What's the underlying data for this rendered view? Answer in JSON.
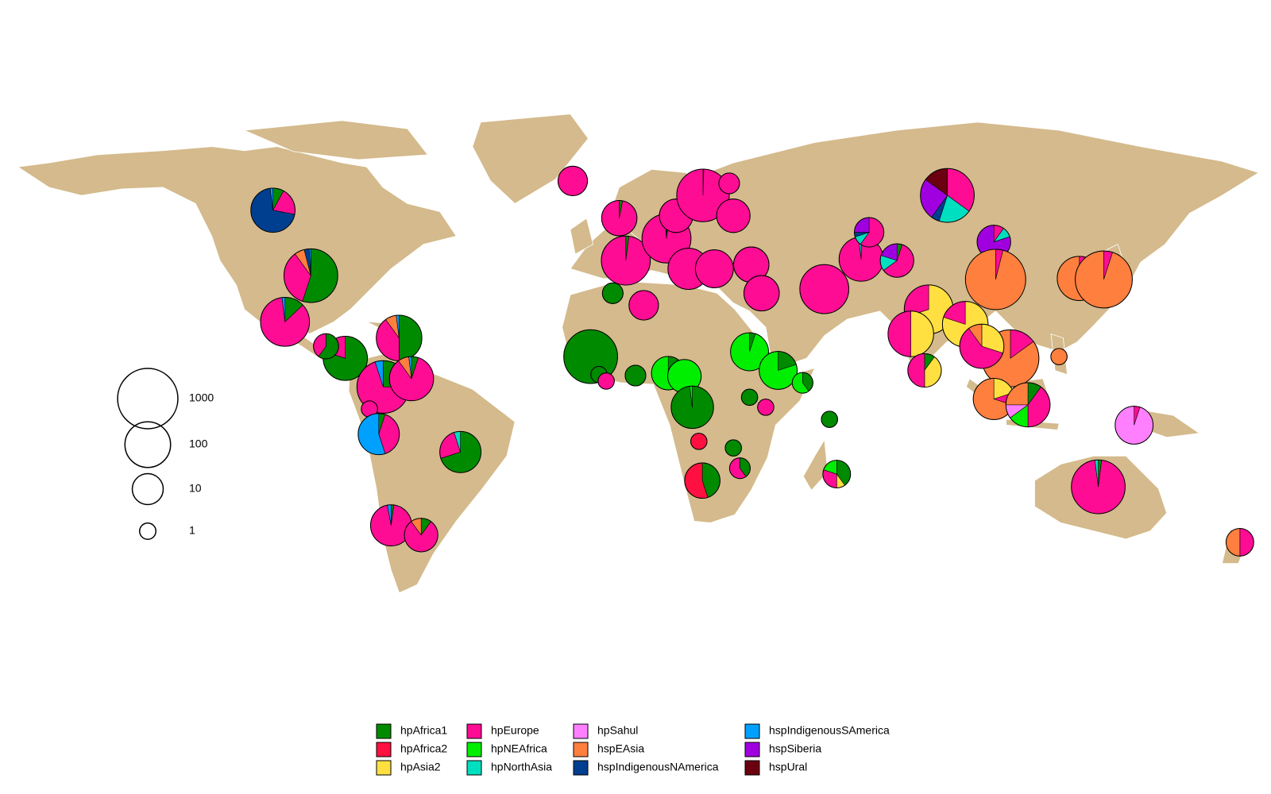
{
  "chart_data": {
    "type": "pie-map",
    "populations": [
      {
        "name": "hpAfrica1",
        "color": "#008a00"
      },
      {
        "name": "hpAfrica2",
        "color": "#ff1040"
      },
      {
        "name": "hpAsia2",
        "color": "#ffe040"
      },
      {
        "name": "hpEurope",
        "color": "#ff0c94"
      },
      {
        "name": "hpNEAfrica",
        "color": "#00ee00"
      },
      {
        "name": "hpNorthAsia",
        "color": "#00dfc0"
      },
      {
        "name": "hpSahul",
        "color": "#ff80ff"
      },
      {
        "name": "hspEAsia",
        "color": "#ff7f3f"
      },
      {
        "name": "hspIndigenousNAmerica",
        "color": "#003f8f"
      },
      {
        "name": "hspIndigenousSAmerica",
        "color": "#00a0ff"
      },
      {
        "name": "hspSiberia",
        "color": "#a000e0"
      },
      {
        "name": "hspUral",
        "color": "#6b0010"
      }
    ],
    "size_legend": [
      1000,
      100,
      10,
      1
    ],
    "pies": [
      {
        "lon": -106,
        "lat": 56,
        "n": 80,
        "values": [
          8,
          0,
          0,
          20,
          0,
          0,
          0,
          0,
          70,
          2,
          0,
          0
        ]
      },
      {
        "lon": -95,
        "lat": 37,
        "n": 360,
        "values": [
          55,
          0,
          0,
          35,
          0,
          0,
          0,
          6,
          3,
          1,
          0,
          0
        ]
      },
      {
        "lon": -102.5,
        "lat": 23.6,
        "n": 170,
        "values": [
          13,
          0,
          0,
          85,
          0,
          0,
          0,
          0,
          0,
          2,
          0,
          0
        ]
      },
      {
        "lon": -85,
        "lat": 13,
        "n": 80,
        "values": [
          80,
          0,
          0,
          20,
          0,
          0,
          0,
          0,
          0,
          0,
          0,
          0
        ]
      },
      {
        "lon": -90.6,
        "lat": 16.5,
        "n": 4,
        "values": [
          60,
          0,
          0,
          40,
          0,
          0,
          0,
          0,
          0,
          0,
          0,
          0
        ]
      },
      {
        "lon": -69.4,
        "lat": 18.9,
        "n": 100,
        "values": [
          50,
          0,
          0,
          40,
          0,
          0,
          0,
          8,
          0,
          2,
          0,
          0
        ]
      },
      {
        "lon": -74,
        "lat": 4.7,
        "n": 300,
        "values": [
          25,
          0,
          0,
          70,
          0,
          0,
          0,
          0,
          0,
          5,
          0,
          0
        ]
      },
      {
        "lon": -65.8,
        "lat": 7.1,
        "n": 80,
        "values": [
          5,
          0,
          0,
          85,
          0,
          0,
          0,
          8,
          0,
          2,
          0,
          0
        ]
      },
      {
        "lon": -78,
        "lat": -1.7,
        "n": 1,
        "values": [
          0,
          0,
          0,
          100,
          0,
          0,
          0,
          0,
          0,
          0,
          0,
          0
        ]
      },
      {
        "lon": -75.3,
        "lat": -9,
        "n": 50,
        "values": [
          5,
          0,
          0,
          40,
          0,
          0,
          0,
          0,
          0,
          55,
          0,
          0
        ]
      },
      {
        "lon": -51.6,
        "lat": -14.2,
        "n": 50,
        "values": [
          70,
          0,
          0,
          25,
          0,
          5,
          0,
          0,
          0,
          0,
          0,
          0
        ]
      },
      {
        "lon": -71.7,
        "lat": -35.5,
        "n": 50,
        "values": [
          2,
          0,
          0,
          95,
          0,
          0,
          0,
          0,
          0,
          3,
          0,
          0
        ]
      },
      {
        "lon": -63,
        "lat": -38.3,
        "n": 15,
        "values": [
          10,
          0,
          0,
          80,
          0,
          0,
          0,
          10,
          0,
          0,
          0,
          0
        ]
      },
      {
        "lon": -19,
        "lat": 64.5,
        "n": 8,
        "values": [
          0,
          0,
          0,
          100,
          0,
          0,
          0,
          0,
          0,
          0,
          0,
          0
        ]
      },
      {
        "lon": -3.6,
        "lat": 41.4,
        "n": 170,
        "values": [
          2,
          0,
          0,
          98,
          0,
          0,
          0,
          0,
          0,
          0,
          0,
          0
        ]
      },
      {
        "lon": -7.4,
        "lat": 31.9,
        "n": 2,
        "values": [
          100,
          0,
          0,
          0,
          0,
          0,
          0,
          0,
          0,
          0,
          0,
          0
        ]
      },
      {
        "lon": -5.5,
        "lat": 53.7,
        "n": 20,
        "values": [
          3,
          0,
          0,
          97,
          0,
          0,
          0,
          0,
          0,
          0,
          0,
          0
        ]
      },
      {
        "lon": 8.2,
        "lat": 47.8,
        "n": 170,
        "values": [
          2,
          0,
          0,
          97,
          0,
          0,
          0,
          1,
          0,
          0,
          0,
          0
        ]
      },
      {
        "lon": 11,
        "lat": 54.4,
        "n": 15,
        "values": [
          0,
          0,
          0,
          100,
          0,
          0,
          0,
          0,
          0,
          0,
          0,
          0
        ]
      },
      {
        "lon": 18.8,
        "lat": 60.3,
        "n": 300,
        "values": [
          0.5,
          0,
          0,
          99.5,
          0,
          0,
          0,
          0,
          0,
          0,
          0,
          0
        ]
      },
      {
        "lon": 26.4,
        "lat": 63.8,
        "n": 2,
        "values": [
          0,
          0,
          0,
          100,
          0,
          0,
          0,
          0,
          0,
          0,
          0,
          0
        ]
      },
      {
        "lon": 27.6,
        "lat": 54.4,
        "n": 15,
        "values": [
          0,
          0,
          0,
          100,
          0,
          0,
          0,
          0,
          0,
          0,
          0,
          0
        ]
      },
      {
        "lon": 14.6,
        "lat": 39,
        "n": 50,
        "values": [
          0,
          0,
          0,
          100,
          0,
          0,
          0,
          0,
          0,
          0,
          0,
          0
        ]
      },
      {
        "lon": 1.6,
        "lat": 28.4,
        "n": 8,
        "values": [
          0,
          0,
          0,
          100,
          0,
          0,
          0,
          0,
          0,
          0,
          0,
          0
        ]
      },
      {
        "lon": 22.1,
        "lat": 39,
        "n": 30,
        "values": [
          0,
          0,
          0,
          100,
          0,
          0,
          0,
          0,
          0,
          0,
          0,
          0
        ]
      },
      {
        "lon": 32.8,
        "lat": 40.2,
        "n": 20,
        "values": [
          0,
          0,
          0,
          100,
          0,
          0,
          0,
          0,
          0,
          0,
          0,
          0
        ]
      },
      {
        "lon": 35.8,
        "lat": 31.9,
        "n": 20,
        "values": [
          0,
          0,
          0,
          100,
          0,
          0,
          0,
          0,
          0,
          0,
          0,
          0
        ]
      },
      {
        "lon": 32.3,
        "lat": 14.9,
        "n": 30,
        "values": [
          5,
          0,
          0,
          0,
          95,
          0,
          0,
          0,
          0,
          0,
          0,
          0
        ]
      },
      {
        "lon": 54,
        "lat": 33.1,
        "n": 170,
        "values": [
          0,
          0,
          0,
          100,
          0,
          0,
          0,
          0,
          0,
          0,
          0,
          0
        ]
      },
      {
        "lon": 64.7,
        "lat": 41.8,
        "n": 80,
        "values": [
          0,
          0,
          0,
          98,
          0,
          2,
          0,
          0,
          0,
          0,
          0,
          0
        ]
      },
      {
        "lon": 67,
        "lat": 49.6,
        "n": 8,
        "values": [
          0,
          0,
          0,
          60,
          0,
          10,
          0,
          0,
          5,
          0,
          25,
          0
        ]
      },
      {
        "lon": 75.1,
        "lat": 41.4,
        "n": 15,
        "values": [
          5,
          0,
          0,
          60,
          0,
          15,
          0,
          0,
          0,
          0,
          20,
          0
        ]
      },
      {
        "lon": 89.7,
        "lat": 60.3,
        "n": 360,
        "values": [
          0,
          0,
          0,
          35,
          0,
          20,
          0,
          0,
          5,
          0,
          25,
          15
        ]
      },
      {
        "lon": 103.2,
        "lat": 46.8,
        "n": 15,
        "values": [
          0,
          0,
          0,
          10,
          0,
          10,
          0,
          0,
          0,
          0,
          80,
          0
        ]
      },
      {
        "lon": 103.7,
        "lat": 35.9,
        "n": 1000,
        "values": [
          0,
          0,
          0,
          4,
          0,
          0,
          0,
          96,
          0,
          0,
          0,
          0
        ]
      },
      {
        "lon": 128,
        "lat": 36.2,
        "n": 80,
        "values": [
          0,
          0,
          0,
          20,
          0,
          0,
          0,
          80,
          0,
          0,
          0,
          0
        ]
      },
      {
        "lon": 135.1,
        "lat": 35.9,
        "n": 600,
        "values": [
          0,
          0,
          0,
          5,
          0,
          0,
          0,
          95,
          0,
          0,
          0,
          0
        ]
      },
      {
        "lon": 84.3,
        "lat": 27.2,
        "n": 170,
        "values": [
          0,
          0,
          70,
          30,
          0,
          0,
          0,
          0,
          0,
          0,
          0,
          0
        ]
      },
      {
        "lon": 79.1,
        "lat": 20.1,
        "n": 100,
        "values": [
          0,
          0,
          50,
          50,
          0,
          0,
          0,
          0,
          0,
          0,
          0,
          0
        ]
      },
      {
        "lon": 94.9,
        "lat": 22.9,
        "n": 100,
        "values": [
          0,
          0,
          80,
          20,
          0,
          0,
          0,
          0,
          0,
          0,
          0,
          0
        ]
      },
      {
        "lon": 108,
        "lat": 13,
        "n": 600,
        "values": [
          0,
          0,
          0,
          15,
          0,
          0,
          0,
          85,
          0,
          0,
          0,
          0
        ]
      },
      {
        "lon": 99.7,
        "lat": 16.5,
        "n": 80,
        "values": [
          0,
          0,
          30,
          60,
          0,
          0,
          0,
          10,
          0,
          0,
          0,
          0
        ]
      },
      {
        "lon": 83.1,
        "lat": 9.5,
        "n": 15,
        "values": [
          10,
          0,
          40,
          50,
          0,
          0,
          0,
          0,
          0,
          0,
          0,
          0
        ]
      },
      {
        "lon": 103.2,
        "lat": 1.2,
        "n": 50,
        "values": [
          0,
          0,
          20,
          10,
          0,
          0,
          0,
          70,
          0,
          0,
          0,
          0
        ]
      },
      {
        "lon": 113.1,
        "lat": -0.5,
        "n": 80,
        "values": [
          10,
          0,
          0,
          40,
          15,
          0,
          10,
          25,
          0,
          0,
          0,
          0
        ]
      },
      {
        "lon": 122.1,
        "lat": 13.5,
        "n": 1,
        "values": [
          0,
          0,
          0,
          0,
          0,
          0,
          0,
          100,
          0,
          0,
          0,
          0
        ]
      },
      {
        "lon": 143.9,
        "lat": -6.4,
        "n": 30,
        "values": [
          0,
          0,
          0,
          5,
          0,
          0,
          95,
          0,
          0,
          0,
          0,
          0
        ]
      },
      {
        "lon": 133.5,
        "lat": -24.3,
        "n": 360,
        "values": [
          2,
          0,
          0,
          96,
          0,
          2,
          0,
          0,
          0,
          0,
          0,
          0
        ]
      },
      {
        "lon": 174.6,
        "lat": -40.4,
        "n": 6,
        "values": [
          0,
          0,
          0,
          50,
          0,
          0,
          0,
          50,
          0,
          0,
          0,
          0
        ]
      },
      {
        "lon": -13.8,
        "lat": 13.5,
        "n": 360,
        "values": [
          100,
          0,
          0,
          0,
          0,
          0,
          0,
          0,
          0,
          0,
          0,
          0
        ]
      },
      {
        "lon": -11.4,
        "lat": 8.3,
        "n": 1,
        "values": [
          100,
          0,
          0,
          0,
          0,
          0,
          0,
          0,
          0,
          0,
          0,
          0
        ]
      },
      {
        "lon": -9.3,
        "lat": 6.4,
        "n": 1,
        "values": [
          0,
          0,
          0,
          100,
          0,
          0,
          0,
          0,
          0,
          0,
          0,
          0
        ]
      },
      {
        "lon": -0.8,
        "lat": 8,
        "n": 2,
        "values": [
          100,
          0,
          0,
          0,
          0,
          0,
          0,
          0,
          0,
          0,
          0,
          0
        ]
      },
      {
        "lon": 8.7,
        "lat": 8.7,
        "n": 15,
        "values": [
          10,
          0,
          0,
          0,
          90,
          0,
          0,
          0,
          0,
          0,
          0,
          0
        ]
      },
      {
        "lon": 13.4,
        "lat": 7.8,
        "n": 15,
        "values": [
          0,
          0,
          0,
          0,
          100,
          0,
          0,
          0,
          0,
          0,
          0,
          0
        ]
      },
      {
        "lon": 15.7,
        "lat": -1.2,
        "n": 60,
        "values": [
          98,
          0,
          0,
          0,
          2,
          0,
          0,
          0,
          0,
          0,
          0,
          0
        ]
      },
      {
        "lon": 17.6,
        "lat": -11.1,
        "n": 1,
        "values": [
          0,
          100,
          0,
          0,
          0,
          0,
          0,
          0,
          0,
          0,
          0,
          0
        ]
      },
      {
        "lon": 18.6,
        "lat": -22.5,
        "n": 20,
        "values": [
          45,
          55,
          0,
          0,
          0,
          0,
          0,
          0,
          0,
          0,
          0,
          0
        ]
      },
      {
        "lon": 27.6,
        "lat": -13,
        "n": 1,
        "values": [
          100,
          0,
          0,
          0,
          0,
          0,
          0,
          0,
          0,
          0,
          0,
          0
        ]
      },
      {
        "lon": 29.5,
        "lat": -18.9,
        "n": 2,
        "values": [
          40,
          0,
          0,
          60,
          0,
          0,
          0,
          0,
          0,
          0,
          0,
          0
        ]
      },
      {
        "lon": 40.6,
        "lat": 9.5,
        "n": 30,
        "values": [
          20,
          0,
          0,
          0,
          80,
          0,
          0,
          0,
          0,
          0,
          0,
          0
        ]
      },
      {
        "lon": 47.7,
        "lat": 5.9,
        "n": 2,
        "values": [
          40,
          0,
          0,
          0,
          60,
          0,
          0,
          0,
          0,
          0,
          0,
          0
        ]
      },
      {
        "lon": 32.3,
        "lat": 1.7,
        "n": 1,
        "values": [
          100,
          0,
          0,
          0,
          0,
          0,
          0,
          0,
          0,
          0,
          0,
          0
        ]
      },
      {
        "lon": 37,
        "lat": -1.2,
        "n": 1,
        "values": [
          0,
          0,
          0,
          100,
          0,
          0,
          0,
          0,
          0,
          0,
          0,
          0
        ]
      },
      {
        "lon": 55.5,
        "lat": -4.7,
        "n": 1,
        "values": [
          100,
          0,
          0,
          0,
          0,
          0,
          0,
          0,
          0,
          0,
          0,
          0
        ]
      },
      {
        "lon": 57.6,
        "lat": -20.6,
        "n": 6,
        "values": [
          40,
          0,
          10,
          30,
          20,
          0,
          0,
          0,
          0,
          0,
          0,
          0
        ]
      }
    ]
  }
}
